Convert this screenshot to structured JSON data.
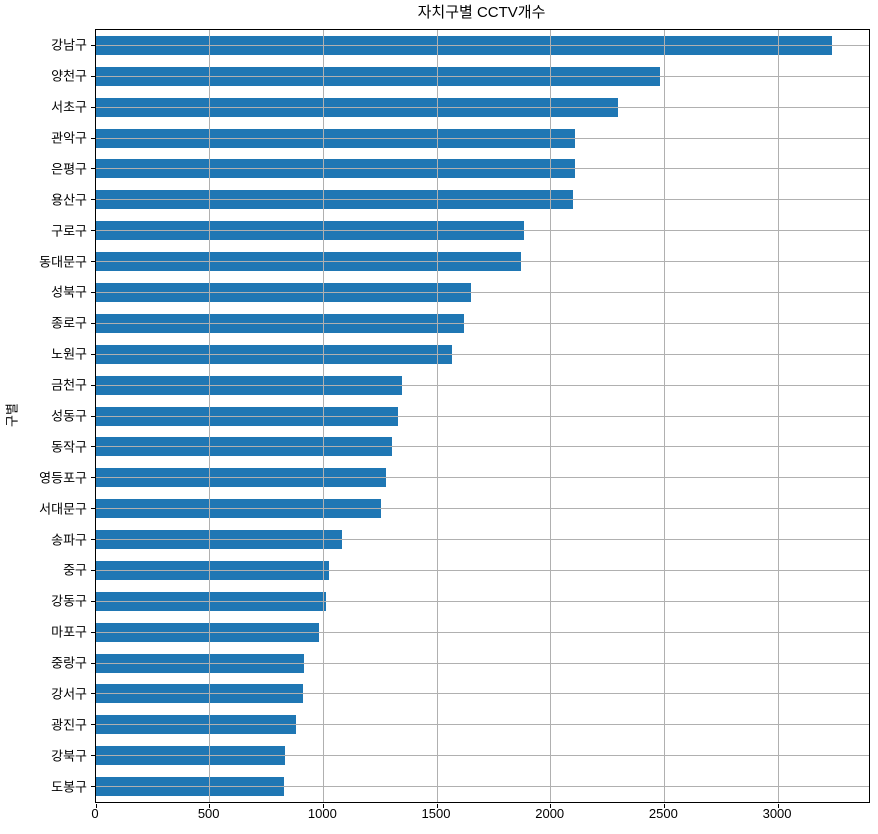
{
  "chart_data": {
    "type": "bar",
    "orientation": "horizontal",
    "title": "자치구별 CCTV개수",
    "ylabel": "구별",
    "xlabel": "",
    "categories": [
      "강남구",
      "양천구",
      "서초구",
      "관악구",
      "은평구",
      "용산구",
      "구로구",
      "동대문구",
      "성북구",
      "종로구",
      "노원구",
      "금천구",
      "성동구",
      "동작구",
      "영등포구",
      "서대문구",
      "송파구",
      "중구",
      "강동구",
      "마포구",
      "중랑구",
      "강서구",
      "광진구",
      "강북구",
      "도봉구"
    ],
    "values": [
      3238,
      2482,
      2297,
      2109,
      2108,
      2096,
      1884,
      1870,
      1651,
      1619,
      1566,
      1348,
      1327,
      1302,
      1277,
      1254,
      1081,
      1023,
      1010,
      980,
      916,
      911,
      878,
      831,
      825
    ],
    "xlim": [
      0,
      3400
    ],
    "x_ticks": [
      0,
      500,
      1000,
      1500,
      2000,
      2500,
      3000
    ],
    "x_tick_labels": [
      "0",
      "500",
      "1000",
      "1500",
      "2000",
      "2500",
      "3000"
    ],
    "grid": true,
    "legend": "none",
    "bar_color": "#1f77b4",
    "grid_color": "#b0b0b0"
  }
}
